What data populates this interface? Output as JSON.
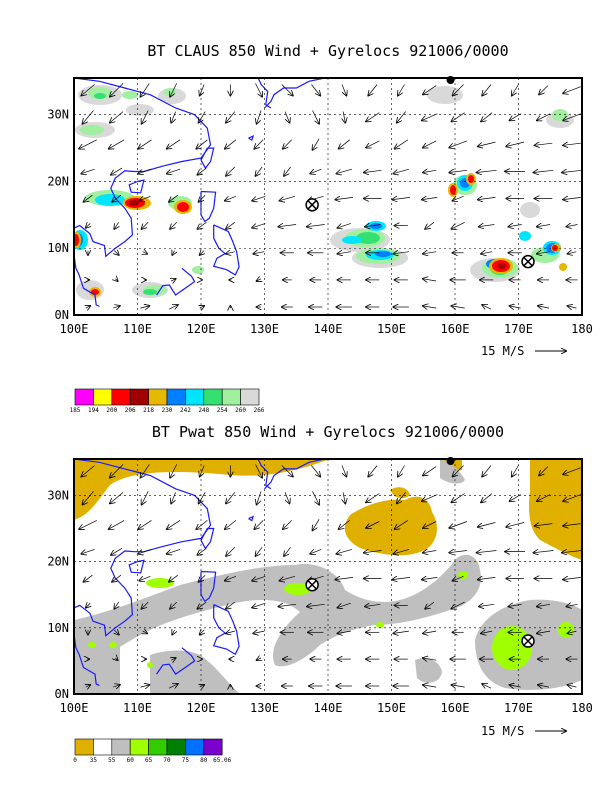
{
  "colors": {
    "frame": "#000000",
    "coast": "#1a1aff",
    "grid": "#000000"
  },
  "top": {
    "title": "BT CLAUS 850 Wind + Gyrelocs 921006/0000",
    "x_ticks": [
      "100E",
      "110E",
      "120E",
      "130E",
      "140E",
      "150E",
      "160E",
      "170E",
      "180"
    ],
    "y_ticks": [
      "30N",
      "20N",
      "10N",
      "0N"
    ],
    "scale_label": "15 M/S",
    "colorbar": {
      "labels": [
        "185",
        "194",
        "200",
        "206",
        "218",
        "230",
        "242",
        "248",
        "254",
        "260",
        "266"
      ],
      "colors": [
        "#ff00ff",
        "#ffff00",
        "#ff0000",
        "#a00000",
        "#e6b800",
        "#0080ff",
        "#00e5ff",
        "#33e070",
        "#a0f0a0",
        "#d9d9d9"
      ]
    },
    "gyre_markers": [
      {
        "lon": 137.5,
        "lat": 16.5
      },
      {
        "lon": 171.5,
        "lat": 8.0
      }
    ]
  },
  "bottom": {
    "title": "BT Pwat 850 Wind + Gyrelocs 921006/0000",
    "x_ticks": [
      "100E",
      "110E",
      "120E",
      "130E",
      "140E",
      "150E",
      "160E",
      "170E",
      "180"
    ],
    "y_ticks": [
      "30N",
      "20N",
      "10N",
      "0N"
    ],
    "scale_label": "15 M/S",
    "colorbar": {
      "labels": [
        "0",
        "35",
        "55",
        "60",
        "65",
        "70",
        "75",
        "80",
        "65.06"
      ],
      "colors": [
        "#e0b000",
        "#ffffff",
        "#bfbfbf",
        "#a0ff00",
        "#33cc00",
        "#008000",
        "#0070ff",
        "#7a00cc"
      ]
    },
    "gyre_markers": [
      {
        "lon": 137.5,
        "lat": 16.5
      },
      {
        "lon": 171.5,
        "lat": 8.0
      }
    ]
  }
}
